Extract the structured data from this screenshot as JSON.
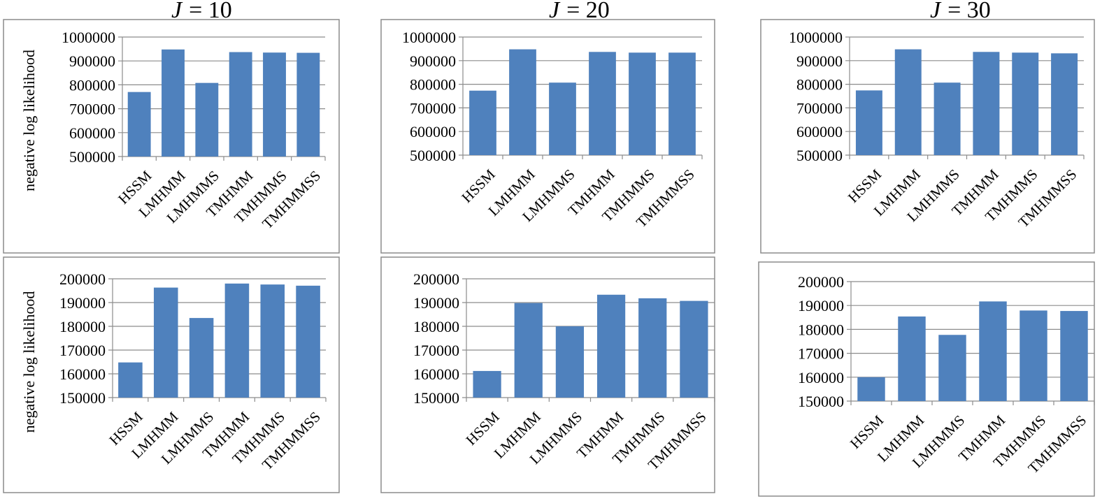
{
  "colors": {
    "bar": "#4f81bd",
    "grid": "#8c8c8c",
    "frame": "#8c8c8c"
  },
  "chart_data": [
    {
      "type": "bar",
      "title_var": "J",
      "title_eq": "= 10",
      "ylabel": "negative log likelihood",
      "ylim": [
        500000,
        1000000
      ],
      "yticks": [
        "500000",
        "600000",
        "700000",
        "800000",
        "900000",
        "1000000"
      ],
      "grid": true,
      "categories": [
        "HSSM",
        "LMHMM",
        "LMHMMS",
        "TMHMM",
        "TMHMMS",
        "TMHMMSS"
      ],
      "values": [
        770000,
        948000,
        808000,
        937000,
        935000,
        934000
      ]
    },
    {
      "type": "bar",
      "title_var": "J",
      "title_eq": "= 20",
      "ylabel": "",
      "ylim": [
        500000,
        1000000
      ],
      "yticks": [
        "500000",
        "600000",
        "700000",
        "800000",
        "900000",
        "1000000"
      ],
      "grid": true,
      "categories": [
        "HSSM",
        "LMHMM",
        "LMHMMS",
        "TMHMM",
        "TMHMMS",
        "TMHMMSS"
      ],
      "values": [
        773000,
        948000,
        807000,
        937000,
        934000,
        934000
      ]
    },
    {
      "type": "bar",
      "title_var": "J",
      "title_eq": "= 30",
      "ylabel": "",
      "ylim": [
        500000,
        1000000
      ],
      "yticks": [
        "500000",
        "600000",
        "700000",
        "800000",
        "900000",
        "1000000"
      ],
      "grid": true,
      "categories": [
        "HSSM",
        "LMHMM",
        "LMHMMS",
        "TMHMM",
        "TMHMMS",
        "TMHMMSS"
      ],
      "values": [
        774000,
        948000,
        807000,
        937000,
        934000,
        931000
      ]
    },
    {
      "type": "bar",
      "title_var": "",
      "title_eq": "",
      "ylabel": "negative log likelihood",
      "ylim": [
        150000,
        200000
      ],
      "yticks": [
        "150000",
        "160000",
        "170000",
        "180000",
        "190000",
        "200000"
      ],
      "grid": true,
      "categories": [
        "HSSM",
        "LMHMM",
        "LMHMMS",
        "TMHMM",
        "TMHMMS",
        "TMHMMSS"
      ],
      "values": [
        164800,
        196300,
        183500,
        198000,
        197600,
        197100
      ]
    },
    {
      "type": "bar",
      "title_var": "",
      "title_eq": "",
      "ylabel": "",
      "ylim": [
        150000,
        200000
      ],
      "yticks": [
        "150000",
        "160000",
        "170000",
        "180000",
        "190000",
        "200000"
      ],
      "grid": true,
      "categories": [
        "HSSM",
        "LMHMM",
        "LMHMMS",
        "TMHMM",
        "TMHMMS",
        "TMHMMSS"
      ],
      "values": [
        161200,
        189800,
        180000,
        193300,
        191800,
        190700
      ]
    },
    {
      "type": "bar",
      "title_var": "",
      "title_eq": "",
      "ylabel": "",
      "ylim": [
        150000,
        200000
      ],
      "yticks": [
        "150000",
        "160000",
        "170000",
        "180000",
        "190000",
        "200000"
      ],
      "grid": true,
      "categories": [
        "HSSM",
        "LMHMM",
        "LMHMMS",
        "TMHMM",
        "TMHMMS",
        "TMHMMSS"
      ],
      "values": [
        160000,
        185400,
        177700,
        191700,
        187900,
        187700
      ]
    }
  ]
}
